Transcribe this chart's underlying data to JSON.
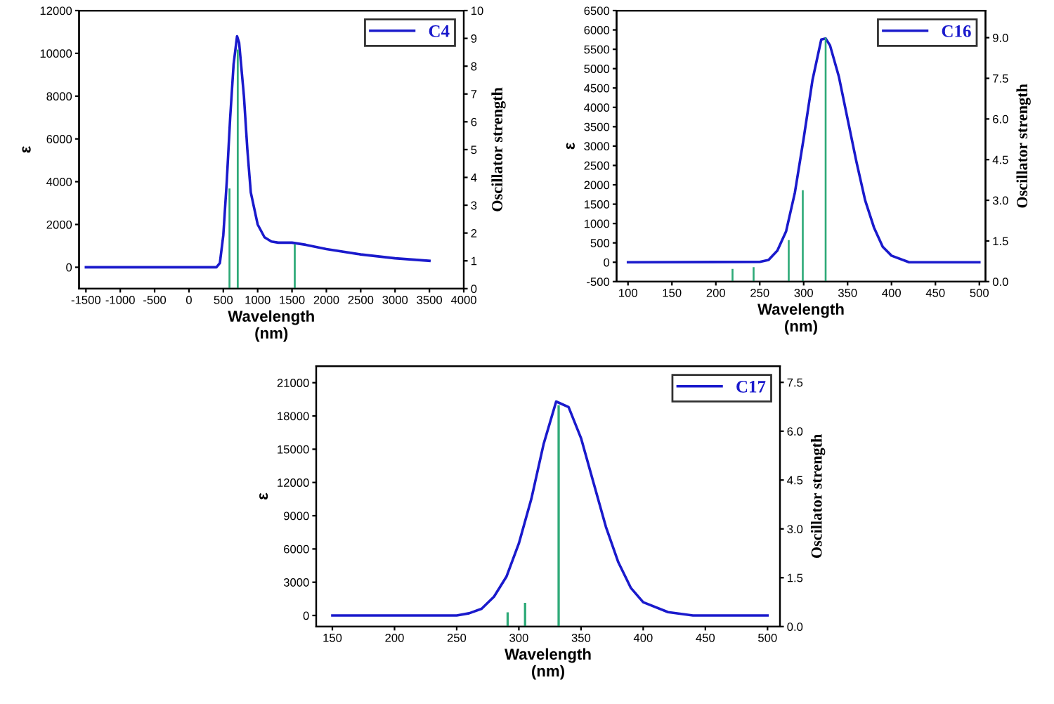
{
  "chart_data": [
    {
      "type": "line",
      "xlabel": "Wavelength\n(nm)",
      "ylabel": "ε",
      "y2label": "Oscillator strength",
      "xlim": [
        -1600,
        4000
      ],
      "xticks": [
        -1500,
        -1000,
        -500,
        0,
        500,
        1000,
        1500,
        2000,
        2500,
        3000,
        3500,
        4000
      ],
      "ylim": [
        -1000,
        12000
      ],
      "yticks": [
        0,
        2000,
        4000,
        6000,
        8000,
        10000,
        12000
      ],
      "y2lim": [
        0,
        10
      ],
      "y2ticks": [
        0,
        1,
        2,
        3,
        4,
        5,
        6,
        7,
        8,
        9,
        10
      ],
      "legend": "top right",
      "grid": false,
      "series": [
        {
          "name": "C4",
          "color": "#1a1acc",
          "x": [
            -1500,
            400,
            450,
            500,
            550,
            600,
            650,
            700,
            730,
            800,
            850,
            900,
            1000,
            1100,
            1200,
            1300,
            1500,
            1700,
            2000,
            2500,
            3000,
            3500
          ],
          "values": [
            0,
            0,
            200,
            1500,
            4000,
            7000,
            9500,
            10800,
            10500,
            8000,
            5500,
            3500,
            2000,
            1400,
            1200,
            1150,
            1150,
            1050,
            850,
            600,
            420,
            300
          ]
        },
        {
          "type": "bar",
          "axis": "y2",
          "color": "#2eaa78",
          "x": [
            590,
            710,
            1540
          ],
          "values": [
            3.6,
            8.6,
            1.6
          ]
        }
      ]
    },
    {
      "type": "line",
      "xlabel": "Wavelength\n(nm)",
      "ylabel": "ε",
      "y2label": "Oscillator strength",
      "xlim": [
        87,
        507
      ],
      "xticks": [
        100,
        150,
        200,
        250,
        300,
        350,
        400,
        450,
        500
      ],
      "ylim": [
        -500,
        6500
      ],
      "yticks": [
        -500,
        0,
        500,
        1000,
        1500,
        2000,
        2500,
        3000,
        3500,
        4000,
        4500,
        5000,
        5500,
        6000,
        6500
      ],
      "y2lim": [
        0,
        10
      ],
      "y2ticks": [
        {
          "value": 0,
          "label": "0.0"
        },
        {
          "value": 1.5,
          "label": "1.5"
        },
        {
          "value": 3,
          "label": "3.0"
        },
        {
          "value": 4.5,
          "label": "4.5"
        },
        {
          "value": 6,
          "label": "6.0"
        },
        {
          "value": 7.5,
          "label": "7.5"
        },
        {
          "value": 9,
          "label": "9.0"
        }
      ],
      "legend": "top right",
      "grid": false,
      "series": [
        {
          "name": "C16",
          "color": "#1a1acc",
          "x": [
            100,
            250,
            260,
            270,
            280,
            290,
            300,
            310,
            320,
            325,
            330,
            340,
            350,
            360,
            370,
            380,
            390,
            400,
            420,
            440,
            500
          ],
          "values": [
            0,
            10,
            60,
            300,
            800,
            1800,
            3200,
            4700,
            5750,
            5780,
            5600,
            4800,
            3700,
            2600,
            1600,
            900,
            400,
            170,
            0,
            0,
            0
          ]
        },
        {
          "type": "bar",
          "axis": "y2",
          "color": "#2eaa78",
          "x": [
            219,
            243,
            283,
            299,
            325
          ],
          "values": [
            0.47,
            0.53,
            1.53,
            3.37,
            9.0
          ]
        }
      ]
    },
    {
      "type": "line",
      "xlabel": "Wavelength\n(nm)",
      "ylabel": "ε",
      "y2label": "Oscillator strength",
      "xlim": [
        137,
        510
      ],
      "xticks": [
        150,
        200,
        250,
        300,
        350,
        400,
        450,
        500
      ],
      "ylim": [
        -1000,
        22500
      ],
      "yticks": [
        0,
        3000,
        6000,
        9000,
        12000,
        15000,
        18000,
        21000
      ],
      "y2lim": [
        0,
        8
      ],
      "y2ticks": [
        {
          "value": 0,
          "label": "0.0"
        },
        {
          "value": 1.5,
          "label": "1.5"
        },
        {
          "value": 3,
          "label": "3.0"
        },
        {
          "value": 4.5,
          "label": "4.5"
        },
        {
          "value": 6,
          "label": "6.0"
        },
        {
          "value": 7.5,
          "label": "7.5"
        }
      ],
      "legend": "top right",
      "grid": false,
      "series": [
        {
          "name": "C17",
          "color": "#1a1acc",
          "x": [
            150,
            250,
            260,
            270,
            280,
            290,
            300,
            310,
            320,
            330,
            340,
            350,
            360,
            370,
            380,
            390,
            400,
            420,
            440,
            500
          ],
          "values": [
            0,
            0,
            200,
            600,
            1700,
            3500,
            6500,
            10500,
            15500,
            19300,
            18800,
            16000,
            12000,
            8000,
            4800,
            2500,
            1200,
            300,
            0,
            0
          ]
        },
        {
          "type": "bar",
          "axis": "y2",
          "color": "#2eaa78",
          "x": [
            291,
            305,
            332
          ],
          "values": [
            0.44,
            0.73,
            6.8
          ]
        }
      ]
    }
  ]
}
